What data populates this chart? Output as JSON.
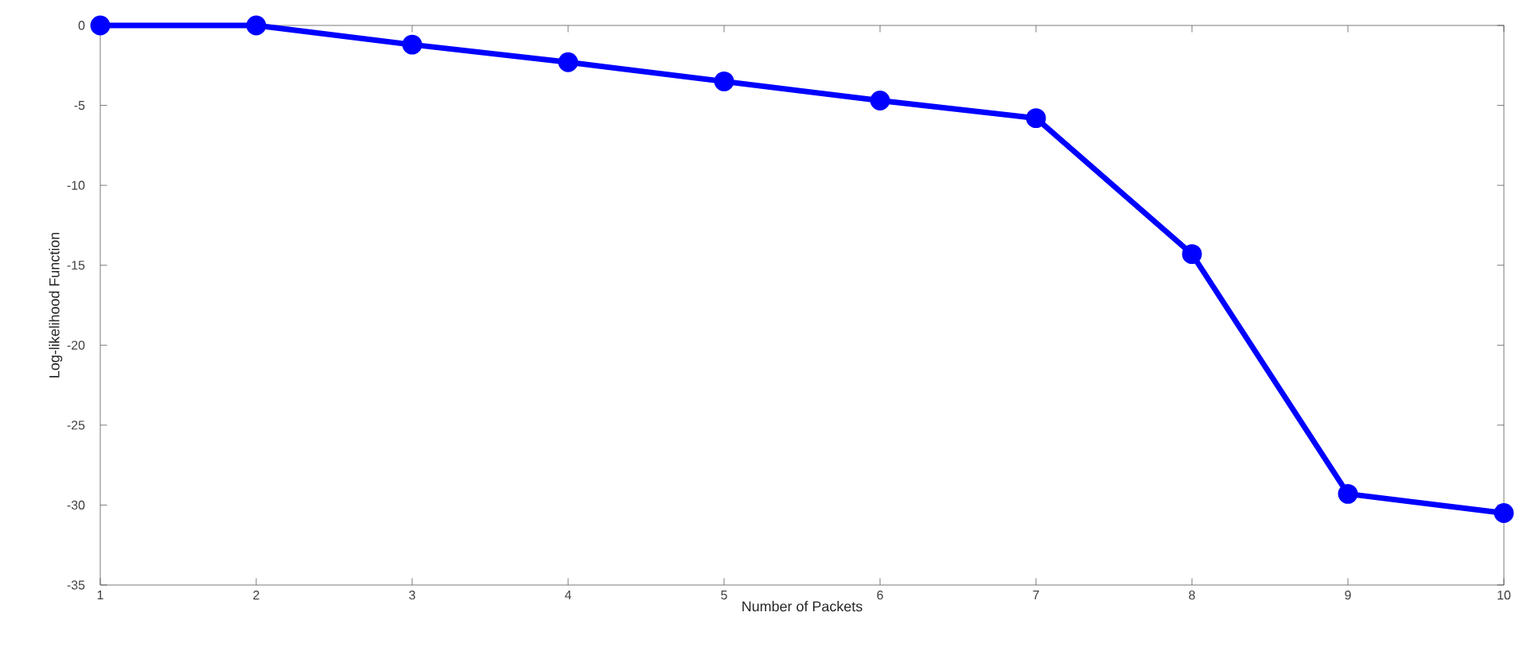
{
  "chart_data": {
    "type": "line",
    "xlabel": "Number of Packets",
    "ylabel": "Log-likelihood Function",
    "x": [
      1,
      2,
      3,
      4,
      5,
      6,
      7,
      8,
      9,
      10
    ],
    "series": [
      {
        "color": "#0000ff",
        "values": [
          0,
          0,
          -1.2,
          -2.3,
          -3.5,
          -4.7,
          -5.8,
          -14.3,
          -29.3,
          -30.5
        ]
      }
    ],
    "xlim": [
      1,
      10
    ],
    "ylim": [
      -35,
      0
    ],
    "xticks": [
      1,
      2,
      3,
      4,
      5,
      6,
      7,
      8,
      9,
      10
    ],
    "yticks": [
      -35,
      -30,
      -25,
      -20,
      -15,
      -10,
      -5,
      0
    ],
    "marker": "circle",
    "line_style": "solid"
  }
}
